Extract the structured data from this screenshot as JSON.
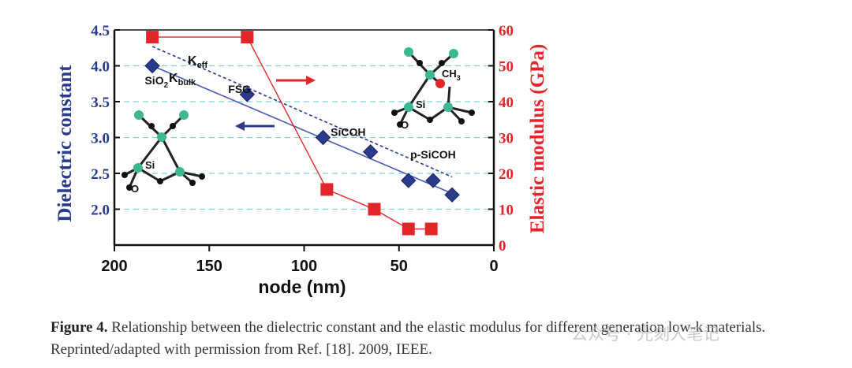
{
  "chart_data": {
    "type": "scatter",
    "x_axis": {
      "label": "node (nm)",
      "range": [
        200,
        0
      ],
      "reversed": true,
      "ticks": [
        200,
        150,
        100,
        50,
        0
      ]
    },
    "y_left": {
      "label": "Dielectric constant",
      "range": [
        1.5,
        4.5
      ],
      "ticks": [
        "4.5",
        "4.0",
        "3.5",
        "3.0",
        "2.5",
        "2.0"
      ],
      "color": "#2a3a8c"
    },
    "y_right": {
      "label": "Elastic modulus (GPa)",
      "range": [
        0,
        60
      ],
      "ticks": [
        60,
        50,
        40,
        30,
        20,
        10,
        0
      ],
      "color": "#e0262b"
    },
    "grid": "horizontal dashed",
    "series": [
      {
        "axis": "left",
        "marker": "diamond",
        "color": "#2a3a8c",
        "points": [
          {
            "x": 180,
            "y": 4.0
          },
          {
            "x": 130,
            "y": 3.6
          },
          {
            "x": 90,
            "y": 3.0
          },
          {
            "x": 65,
            "y": 2.8
          },
          {
            "x": 45,
            "y": 2.4
          },
          {
            "x": 32,
            "y": 2.4
          },
          {
            "x": 22,
            "y": 2.2
          }
        ]
      },
      {
        "axis": "right",
        "marker": "square",
        "color": "#e0262b",
        "points": [
          {
            "x": 180,
            "y": 58
          },
          {
            "x": 130,
            "y": 58
          },
          {
            "x": 88,
            "y": 15.5
          },
          {
            "x": 63,
            "y": 10
          },
          {
            "x": 45,
            "y": 4.5
          },
          {
            "x": 33,
            "y": 4.5
          }
        ]
      }
    ],
    "trend_lines": [
      {
        "label_main": "K",
        "label_sub": "eff",
        "style": "dashed",
        "color": "#2a3a8c",
        "from": {
          "x": 180,
          "y": 4.27
        },
        "to": {
          "x": 22,
          "y": 2.45
        }
      },
      {
        "label_main": "K",
        "label_sub": "bulk",
        "style": "solid",
        "color": "#4a5ab0",
        "from": {
          "x": 180,
          "y": 4.0
        },
        "to": {
          "x": 22,
          "y": 2.22
        }
      }
    ],
    "annotations": [
      {
        "text": "SiO",
        "sub": "2",
        "x": 184,
        "y": 3.74
      },
      {
        "text": "FSG",
        "x": 140,
        "y": 3.62
      },
      {
        "text": "SiCOH",
        "x": 86,
        "y": 3.02
      },
      {
        "text": "p-SiCOH",
        "x": 44,
        "y": 2.71
      }
    ],
    "molecule_labels": {
      "left": {
        "si": "Si",
        "o": "O"
      },
      "right": {
        "si": "Si",
        "o": "O",
        "ch": "CH",
        "ch_sub": "3"
      }
    }
  },
  "caption": {
    "label": "Figure 4.",
    "text": " Relationship between the dielectric constant and the elastic modulus for different generation low-k materials. Reprinted/adapted with permission from Ref. [18]. 2009, IEEE."
  },
  "watermark": "公众号 · 光刻人笔记"
}
